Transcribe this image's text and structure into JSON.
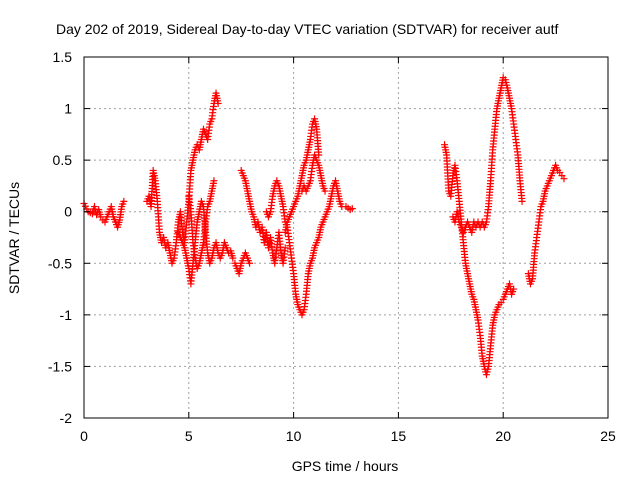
{
  "chart_data": {
    "type": "scatter",
    "title": "Day 202 of 2019, Sidereal Day-to-day VTEC variation (SDTVAR) for receiver autf",
    "xlabel": "GPS time / hours",
    "ylabel": "SDTVAR / TECUs",
    "xlim": [
      0,
      25
    ],
    "ylim": [
      -2,
      1.5
    ],
    "xticks": [
      0,
      5,
      10,
      15,
      20,
      25
    ],
    "xtick_labels": [
      "0",
      "5",
      "10",
      "15",
      "20",
      "25"
    ],
    "yticks": [
      -2,
      -1.5,
      -1,
      -0.5,
      0,
      0.5,
      1,
      1.5
    ],
    "ytick_labels": [
      "-2",
      "-1.5",
      "-1",
      "-0.5",
      "0",
      "0.5",
      "1",
      "1.5"
    ],
    "grid": true,
    "marker": "+",
    "series": [
      {
        "name": "SDTVAR",
        "color": "#ff0000",
        "tracks": [
          [
            [
              0.0,
              0.08
            ],
            [
              0.2,
              0.0
            ],
            [
              0.4,
              -0.02
            ],
            [
              0.5,
              0.05
            ],
            [
              0.6,
              -0.03
            ],
            [
              0.7,
              0.02
            ],
            [
              0.8,
              -0.05
            ],
            [
              0.9,
              -0.08
            ],
            [
              1.0,
              -0.1
            ],
            [
              1.1,
              -0.05
            ],
            [
              1.2,
              0.0
            ],
            [
              1.3,
              0.05
            ],
            [
              1.4,
              -0.05
            ],
            [
              1.5,
              -0.1
            ],
            [
              1.6,
              -0.15
            ],
            [
              1.7,
              -0.08
            ],
            [
              1.8,
              0.05
            ],
            [
              1.9,
              0.1
            ]
          ],
          [
            [
              3.0,
              0.1
            ],
            [
              3.1,
              0.15
            ],
            [
              3.2,
              0.05
            ],
            [
              3.3,
              0.4
            ],
            [
              3.4,
              0.3
            ],
            [
              3.5,
              0.1
            ],
            [
              3.6,
              -0.2
            ],
            [
              3.7,
              -0.3
            ],
            [
              3.8,
              -0.25
            ],
            [
              3.9,
              -0.35
            ],
            [
              4.0,
              -0.3
            ],
            [
              4.1,
              -0.4
            ],
            [
              4.2,
              -0.5
            ],
            [
              4.3,
              -0.45
            ],
            [
              4.4,
              -0.3
            ],
            [
              4.5,
              -0.1
            ],
            [
              4.6,
              0.0
            ],
            [
              4.7,
              -0.2
            ],
            [
              4.8,
              -0.3
            ],
            [
              4.9,
              -0.1
            ],
            [
              5.0,
              0.1
            ],
            [
              5.1,
              0.4
            ],
            [
              5.2,
              0.5
            ],
            [
              5.3,
              0.6
            ],
            [
              5.4,
              0.65
            ],
            [
              5.5,
              0.6
            ],
            [
              5.6,
              0.7
            ],
            [
              5.7,
              0.8
            ],
            [
              5.8,
              0.75
            ],
            [
              5.9,
              0.7
            ],
            [
              6.0,
              0.85
            ],
            [
              6.1,
              0.9
            ],
            [
              6.2,
              1.05
            ],
            [
              6.3,
              1.15
            ],
            [
              6.4,
              1.05
            ]
          ],
          [
            [
              4.5,
              -0.2
            ],
            [
              4.6,
              -0.25
            ],
            [
              4.7,
              -0.3
            ],
            [
              4.8,
              -0.35
            ],
            [
              4.9,
              -0.45
            ],
            [
              5.0,
              -0.55
            ],
            [
              5.1,
              -0.7
            ],
            [
              5.2,
              -0.5
            ],
            [
              5.3,
              -0.3
            ],
            [
              5.4,
              -0.1
            ],
            [
              5.5,
              0.0
            ],
            [
              5.6,
              0.1
            ],
            [
              5.7,
              0.05
            ],
            [
              5.8,
              -0.2
            ],
            [
              5.9,
              -0.4
            ],
            [
              6.0,
              -0.5
            ],
            [
              6.1,
              -0.45
            ],
            [
              6.2,
              -0.35
            ],
            [
              6.3,
              -0.3
            ],
            [
              6.4,
              -0.4
            ],
            [
              6.5,
              -0.45
            ],
            [
              6.6,
              -0.4
            ],
            [
              6.7,
              -0.3
            ],
            [
              6.8,
              -0.35
            ],
            [
              6.9,
              -0.4
            ],
            [
              7.0,
              -0.38
            ],
            [
              7.1,
              -0.45
            ]
          ],
          [
            [
              5.0,
              0.15
            ],
            [
              5.1,
              0.0
            ],
            [
              5.2,
              -0.3
            ],
            [
              5.3,
              -0.45
            ],
            [
              5.4,
              -0.55
            ],
            [
              5.5,
              -0.5
            ],
            [
              5.6,
              -0.4
            ],
            [
              5.7,
              -0.3
            ],
            [
              5.8,
              -0.1
            ],
            [
              5.9,
              0.05
            ],
            [
              6.0,
              0.1
            ],
            [
              6.1,
              0.2
            ],
            [
              6.2,
              0.3
            ]
          ],
          [
            [
              7.2,
              -0.5
            ],
            [
              7.3,
              -0.55
            ],
            [
              7.4,
              -0.6
            ],
            [
              7.5,
              -0.5
            ],
            [
              7.6,
              -0.45
            ],
            [
              7.7,
              -0.4
            ],
            [
              7.8,
              -0.45
            ],
            [
              7.9,
              -0.5
            ]
          ],
          [
            [
              7.5,
              0.4
            ],
            [
              7.6,
              0.35
            ],
            [
              7.7,
              0.3
            ],
            [
              7.8,
              0.2
            ],
            [
              7.9,
              0.1
            ],
            [
              8.0,
              0.0
            ],
            [
              8.1,
              -0.05
            ],
            [
              8.2,
              -0.15
            ],
            [
              8.3,
              -0.1
            ],
            [
              8.4,
              -0.2
            ],
            [
              8.5,
              -0.15
            ],
            [
              8.6,
              -0.3
            ],
            [
              8.7,
              -0.2
            ],
            [
              8.8,
              -0.35
            ],
            [
              8.9,
              -0.25
            ],
            [
              9.0,
              -0.4
            ],
            [
              9.1,
              -0.5
            ],
            [
              9.2,
              -0.35
            ],
            [
              9.3,
              -0.2
            ],
            [
              9.4,
              -0.4
            ],
            [
              9.5,
              -0.5
            ],
            [
              9.6,
              -0.35
            ]
          ],
          [
            [
              8.7,
              0.0
            ],
            [
              8.8,
              -0.05
            ],
            [
              8.9,
              0.0
            ],
            [
              9.0,
              0.15
            ],
            [
              9.1,
              0.25
            ],
            [
              9.2,
              0.3
            ],
            [
              9.3,
              0.25
            ],
            [
              9.4,
              0.15
            ],
            [
              9.5,
              0.05
            ],
            [
              9.6,
              -0.1
            ],
            [
              9.7,
              -0.15
            ],
            [
              9.8,
              -0.3
            ],
            [
              9.9,
              -0.45
            ],
            [
              10.0,
              -0.6
            ],
            [
              10.1,
              -0.8
            ],
            [
              10.2,
              -0.9
            ],
            [
              10.3,
              -0.95
            ],
            [
              10.4,
              -1.0
            ],
            [
              10.5,
              -0.95
            ],
            [
              10.6,
              -0.8
            ],
            [
              10.7,
              -0.6
            ],
            [
              10.8,
              -0.5
            ],
            [
              10.9,
              -0.45
            ],
            [
              11.0,
              -0.35
            ],
            [
              11.1,
              -0.3
            ],
            [
              11.2,
              -0.25
            ],
            [
              11.3,
              -0.15
            ],
            [
              11.4,
              -0.1
            ],
            [
              11.5,
              -0.05
            ],
            [
              11.6,
              0.0
            ],
            [
              11.7,
              0.05
            ],
            [
              11.8,
              0.15
            ],
            [
              11.9,
              0.25
            ],
            [
              12.0,
              0.3
            ],
            [
              12.1,
              0.2
            ],
            [
              12.2,
              0.1
            ],
            [
              12.3,
              0.05
            ],
            [
              12.5,
              0.05
            ],
            [
              12.7,
              0.02
            ],
            [
              12.8,
              0.03
            ]
          ],
          [
            [
              9.6,
              -0.2
            ],
            [
              9.7,
              -0.1
            ],
            [
              9.8,
              -0.05
            ],
            [
              9.9,
              0.0
            ],
            [
              10.0,
              0.05
            ],
            [
              10.1,
              0.1
            ],
            [
              10.2,
              0.15
            ],
            [
              10.3,
              0.25
            ],
            [
              10.4,
              0.35
            ],
            [
              10.5,
              0.45
            ],
            [
              10.6,
              0.5
            ],
            [
              10.7,
              0.6
            ],
            [
              10.8,
              0.7
            ],
            [
              10.9,
              0.85
            ],
            [
              11.0,
              0.9
            ],
            [
              11.1,
              0.8
            ],
            [
              11.2,
              0.55
            ]
          ],
          [
            [
              10.4,
              0.2
            ],
            [
              10.5,
              0.25
            ],
            [
              10.6,
              0.2
            ],
            [
              10.7,
              0.25
            ],
            [
              10.8,
              0.3
            ],
            [
              10.9,
              0.45
            ],
            [
              11.0,
              0.55
            ],
            [
              11.1,
              0.5
            ],
            [
              11.2,
              0.45
            ],
            [
              11.3,
              0.35
            ],
            [
              11.4,
              0.25
            ],
            [
              11.5,
              0.2
            ]
          ],
          [
            [
              17.2,
              0.65
            ],
            [
              17.3,
              0.55
            ],
            [
              17.4,
              0.2
            ],
            [
              17.5,
              0.15
            ],
            [
              17.6,
              0.35
            ],
            [
              17.7,
              0.45
            ],
            [
              17.8,
              0.3
            ],
            [
              17.9,
              0.1
            ],
            [
              18.0,
              -0.1
            ],
            [
              18.1,
              -0.3
            ],
            [
              18.2,
              -0.5
            ],
            [
              18.3,
              -0.6
            ],
            [
              18.4,
              -0.7
            ],
            [
              18.5,
              -0.8
            ],
            [
              18.6,
              -0.85
            ],
            [
              18.7,
              -0.95
            ],
            [
              18.8,
              -1.05
            ],
            [
              18.9,
              -1.2
            ],
            [
              19.0,
              -1.4
            ],
            [
              19.1,
              -1.5
            ],
            [
              19.2,
              -1.58
            ],
            [
              19.3,
              -1.5
            ],
            [
              19.4,
              -1.3
            ],
            [
              19.5,
              -1.1
            ],
            [
              19.6,
              -1.0
            ],
            [
              19.7,
              -0.95
            ],
            [
              19.8,
              -0.9
            ],
            [
              19.9,
              -0.88
            ],
            [
              20.0,
              -0.85
            ],
            [
              20.1,
              -0.8
            ],
            [
              20.2,
              -0.75
            ],
            [
              20.3,
              -0.7
            ],
            [
              20.4,
              -0.8
            ],
            [
              20.5,
              -0.75
            ]
          ],
          [
            [
              17.6,
              -0.05
            ],
            [
              17.7,
              -0.1
            ],
            [
              17.8,
              0.0
            ],
            [
              17.9,
              -0.1
            ],
            [
              18.0,
              -0.15
            ],
            [
              18.1,
              -0.2
            ],
            [
              18.2,
              -0.15
            ],
            [
              18.3,
              -0.1
            ],
            [
              18.4,
              -0.15
            ],
            [
              18.5,
              -0.2
            ],
            [
              18.6,
              -0.1
            ],
            [
              18.7,
              -0.15
            ],
            [
              18.8,
              -0.1
            ],
            [
              18.9,
              -0.15
            ],
            [
              19.0,
              -0.1
            ],
            [
              19.1,
              -0.15
            ],
            [
              19.2,
              -0.1
            ],
            [
              19.3,
              0.05
            ],
            [
              19.4,
              0.3
            ],
            [
              19.5,
              0.6
            ],
            [
              19.6,
              0.8
            ],
            [
              19.7,
              1.0
            ],
            [
              19.8,
              1.1
            ],
            [
              19.9,
              1.2
            ],
            [
              20.0,
              1.3
            ],
            [
              20.1,
              1.28
            ],
            [
              20.2,
              1.2
            ],
            [
              20.3,
              1.1
            ],
            [
              20.4,
              1.0
            ],
            [
              20.5,
              0.85
            ],
            [
              20.6,
              0.7
            ],
            [
              20.7,
              0.55
            ],
            [
              20.8,
              0.3
            ],
            [
              20.9,
              0.1
            ]
          ],
          [
            [
              21.2,
              -0.6
            ],
            [
              21.3,
              -0.7
            ],
            [
              21.4,
              -0.65
            ],
            [
              21.5,
              -0.4
            ],
            [
              21.6,
              -0.25
            ],
            [
              21.7,
              -0.1
            ],
            [
              21.8,
              0.05
            ],
            [
              21.9,
              0.1
            ],
            [
              22.0,
              0.2
            ],
            [
              22.1,
              0.25
            ],
            [
              22.2,
              0.3
            ],
            [
              22.3,
              0.35
            ],
            [
              22.4,
              0.4
            ],
            [
              22.5,
              0.45
            ],
            [
              22.6,
              0.4
            ],
            [
              22.7,
              0.38
            ],
            [
              22.8,
              0.35
            ],
            [
              22.9,
              0.32
            ]
          ]
        ]
      }
    ]
  }
}
